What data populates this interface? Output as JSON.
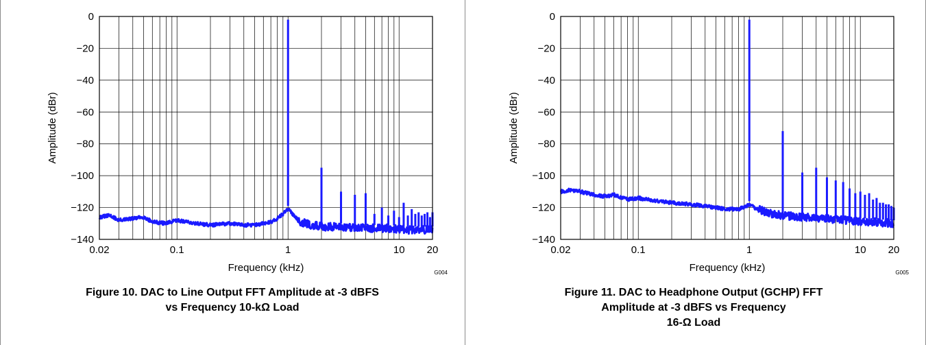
{
  "chart_data": [
    {
      "type": "line",
      "figure": "G004",
      "caption": [
        "Figure 10. DAC to Line Output FFT Amplitude at -3 dBFS",
        "vs Frequency 10-kΩ Load"
      ],
      "xlabel": "Frequency (kHz)",
      "ylabel": "Amplitude (dBr)",
      "xscale": "log",
      "xlim": [
        0.02,
        20
      ],
      "ylim": [
        -140,
        0
      ],
      "x_ticks": [
        "0.02",
        "0.1",
        "1",
        "10",
        "20"
      ],
      "y_ticks": [
        "0",
        "−20",
        "−40",
        "−60",
        "−80",
        "−100",
        "−120",
        "−140"
      ],
      "grid": true,
      "color": "#1a1aff",
      "series": [
        {
          "noise_floor": [
            [
              0.02,
              -126
            ],
            [
              0.025,
              -125
            ],
            [
              0.03,
              -128
            ],
            [
              0.04,
              -127
            ],
            [
              0.05,
              -126
            ],
            [
              0.06,
              -129
            ],
            [
              0.08,
              -130
            ],
            [
              0.1,
              -128
            ],
            [
              0.15,
              -130
            ],
            [
              0.2,
              -131
            ],
            [
              0.3,
              -130
            ],
            [
              0.4,
              -131
            ],
            [
              0.5,
              -131
            ],
            [
              0.6,
              -130
            ],
            [
              0.7,
              -129
            ],
            [
              0.8,
              -127
            ],
            [
              0.9,
              -124
            ],
            [
              1.0,
              -121
            ],
            [
              1.1,
              -124
            ],
            [
              1.3,
              -129
            ],
            [
              1.6,
              -131
            ],
            [
              2,
              -132
            ],
            [
              3,
              -132
            ],
            [
              5,
              -133
            ],
            [
              8,
              -133
            ],
            [
              12,
              -134
            ],
            [
              20,
              -134
            ]
          ],
          "peaks": [
            [
              1,
              -2
            ],
            [
              2,
              -95
            ],
            [
              3,
              -110
            ],
            [
              4,
              -112
            ],
            [
              5,
              -111
            ],
            [
              6,
              -124
            ],
            [
              7,
              -120
            ],
            [
              8,
              -125
            ],
            [
              9,
              -122
            ],
            [
              10,
              -126
            ],
            [
              11,
              -117
            ],
            [
              12,
              -125
            ],
            [
              13,
              -121
            ],
            [
              14,
              -124
            ],
            [
              15,
              -123
            ],
            [
              16,
              -125
            ],
            [
              17,
              -124
            ],
            [
              18,
              -123
            ],
            [
              19,
              -126
            ],
            [
              20,
              -123
            ]
          ]
        }
      ]
    },
    {
      "type": "line",
      "figure": "G005",
      "caption": [
        "Figure 11. DAC to Headphone Output (GCHP) FFT",
        "Amplitude at -3 dBFS vs Frequency",
        "16-Ω Load"
      ],
      "xlabel": "Frequency (kHz)",
      "ylabel": "Amplitude (dBr)",
      "xscale": "log",
      "xlim": [
        0.02,
        20
      ],
      "ylim": [
        -140,
        0
      ],
      "x_ticks": [
        "0.02",
        "0.1",
        "1",
        "10",
        "20"
      ],
      "y_ticks": [
        "0",
        "−20",
        "−40",
        "−60",
        "−80",
        "−100",
        "−120",
        "−140"
      ],
      "grid": true,
      "color": "#1a1aff",
      "series": [
        {
          "noise_floor": [
            [
              0.02,
              -110
            ],
            [
              0.025,
              -109
            ],
            [
              0.03,
              -110
            ],
            [
              0.04,
              -112
            ],
            [
              0.05,
              -113
            ],
            [
              0.06,
              -112
            ],
            [
              0.08,
              -115
            ],
            [
              0.1,
              -114
            ],
            [
              0.15,
              -116
            ],
            [
              0.2,
              -117
            ],
            [
              0.3,
              -118
            ],
            [
              0.4,
              -119
            ],
            [
              0.5,
              -120
            ],
            [
              0.6,
              -121
            ],
            [
              0.7,
              -121
            ],
            [
              0.8,
              -121
            ],
            [
              0.9,
              -120
            ],
            [
              1.0,
              -118
            ],
            [
              1.1,
              -120
            ],
            [
              1.3,
              -122
            ],
            [
              1.6,
              -124
            ],
            [
              2,
              -125
            ],
            [
              3,
              -126
            ],
            [
              5,
              -127
            ],
            [
              8,
              -128
            ],
            [
              12,
              -129
            ],
            [
              20,
              -130
            ]
          ],
          "peaks": [
            [
              1,
              -2
            ],
            [
              2,
              -72
            ],
            [
              3,
              -98
            ],
            [
              4,
              -95
            ],
            [
              5,
              -101
            ],
            [
              6,
              -103
            ],
            [
              7,
              -104
            ],
            [
              8,
              -108
            ],
            [
              9,
              -111
            ],
            [
              10,
              -110
            ],
            [
              11,
              -112
            ],
            [
              12,
              -111
            ],
            [
              13,
              -115
            ],
            [
              14,
              -114
            ],
            [
              15,
              -117
            ],
            [
              16,
              -117
            ],
            [
              17,
              -118
            ],
            [
              18,
              -118
            ],
            [
              19,
              -119
            ],
            [
              20,
              -120
            ]
          ]
        }
      ]
    }
  ]
}
